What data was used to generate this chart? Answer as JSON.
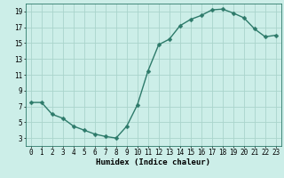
{
  "x": [
    0,
    1,
    2,
    3,
    4,
    5,
    6,
    7,
    8,
    9,
    10,
    11,
    12,
    13,
    14,
    15,
    16,
    17,
    18,
    19,
    20,
    21,
    22,
    23
  ],
  "y": [
    7.5,
    7.5,
    6.0,
    5.5,
    4.5,
    4.0,
    3.5,
    3.2,
    3.0,
    4.5,
    7.2,
    11.5,
    14.8,
    15.5,
    17.2,
    18.0,
    18.5,
    19.2,
    19.3,
    18.8,
    18.2,
    16.8,
    15.8,
    16.0
  ],
  "line_color": "#2d7a6a",
  "marker_color": "#2d7a6a",
  "bg_color": "#cceee8",
  "grid_color": "#aad4cc",
  "xlabel": "Humidex (Indice chaleur)",
  "xlim": [
    -0.5,
    23.5
  ],
  "ylim": [
    2,
    20
  ],
  "yticks": [
    3,
    5,
    7,
    9,
    11,
    13,
    15,
    17,
    19
  ],
  "xticks": [
    0,
    1,
    2,
    3,
    4,
    5,
    6,
    7,
    8,
    9,
    10,
    11,
    12,
    13,
    14,
    15,
    16,
    17,
    18,
    19,
    20,
    21,
    22,
    23
  ],
  "tick_fontsize": 5.5,
  "xlabel_fontsize": 6.5,
  "marker_size": 2.5,
  "line_width": 1.0
}
